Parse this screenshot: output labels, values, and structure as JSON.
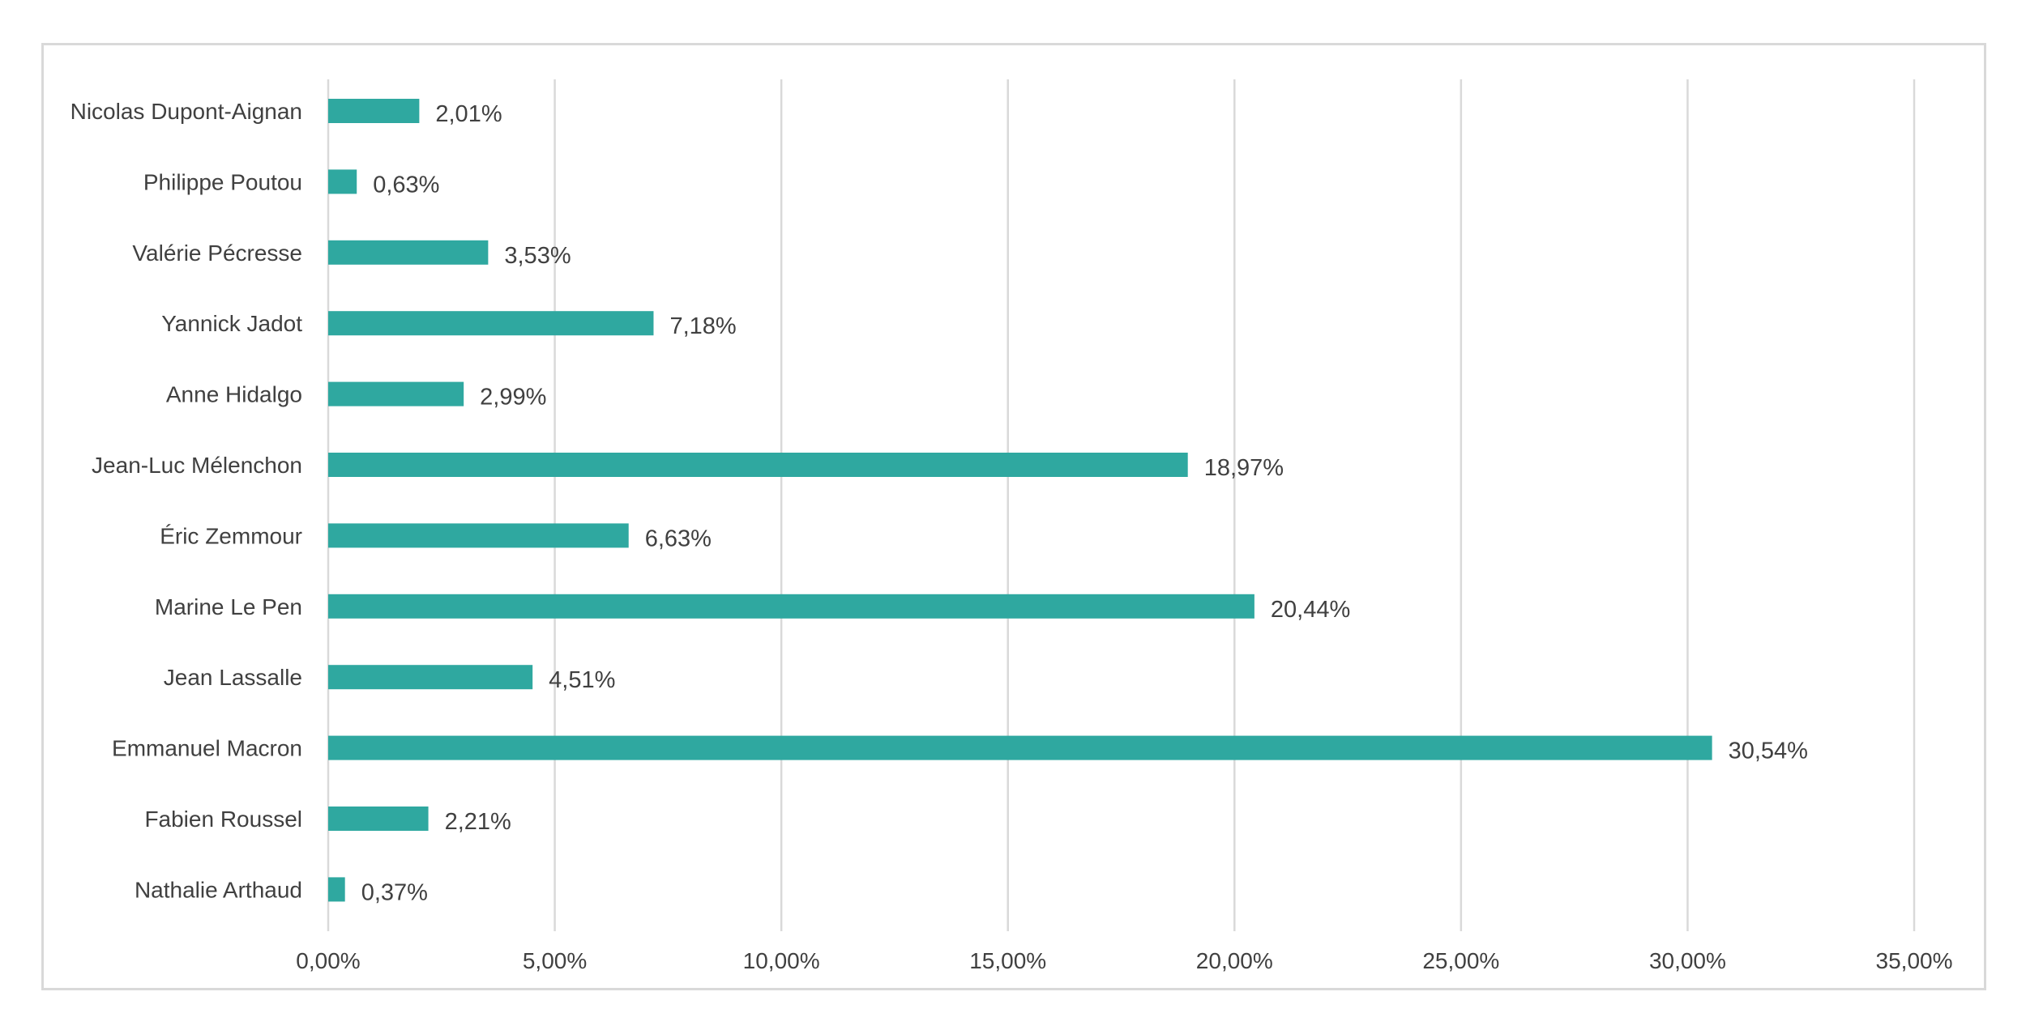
{
  "chart_data": {
    "type": "bar",
    "orientation": "horizontal",
    "categories": [
      "Nicolas Dupont-Aignan",
      "Philippe Poutou",
      "Valérie Pécresse",
      "Yannick Jadot",
      "Anne Hidalgo",
      "Jean-Luc Mélenchon",
      "Éric Zemmour",
      "Marine Le Pen",
      "Jean Lassalle",
      "Emmanuel Macron",
      "Fabien Roussel",
      "Nathalie Arthaud"
    ],
    "values": [
      2.01,
      0.63,
      3.53,
      7.18,
      2.99,
      18.97,
      6.63,
      20.44,
      4.51,
      30.54,
      2.21,
      0.37
    ],
    "data_labels": [
      "2,01%",
      "0,63%",
      "3,53%",
      "7,18%",
      "2,99%",
      "18,97%",
      "6,63%",
      "20,44%",
      "4,51%",
      "30,54%",
      "2,21%",
      "0,37%"
    ],
    "x_ticks": [
      0,
      5,
      10,
      15,
      20,
      25,
      30,
      35
    ],
    "x_tick_labels": [
      "0,00%",
      "5,00%",
      "10,00%",
      "15,00%",
      "20,00%",
      "25,00%",
      "30,00%",
      "35,00%"
    ],
    "xlim": [
      0,
      35
    ],
    "title": "",
    "xlabel": "",
    "ylabel": "",
    "grid": "vertical",
    "legend": "none",
    "bar_color": "#2fa8a0",
    "grid_color": "#d9d9d9",
    "text_color": "#404040"
  }
}
